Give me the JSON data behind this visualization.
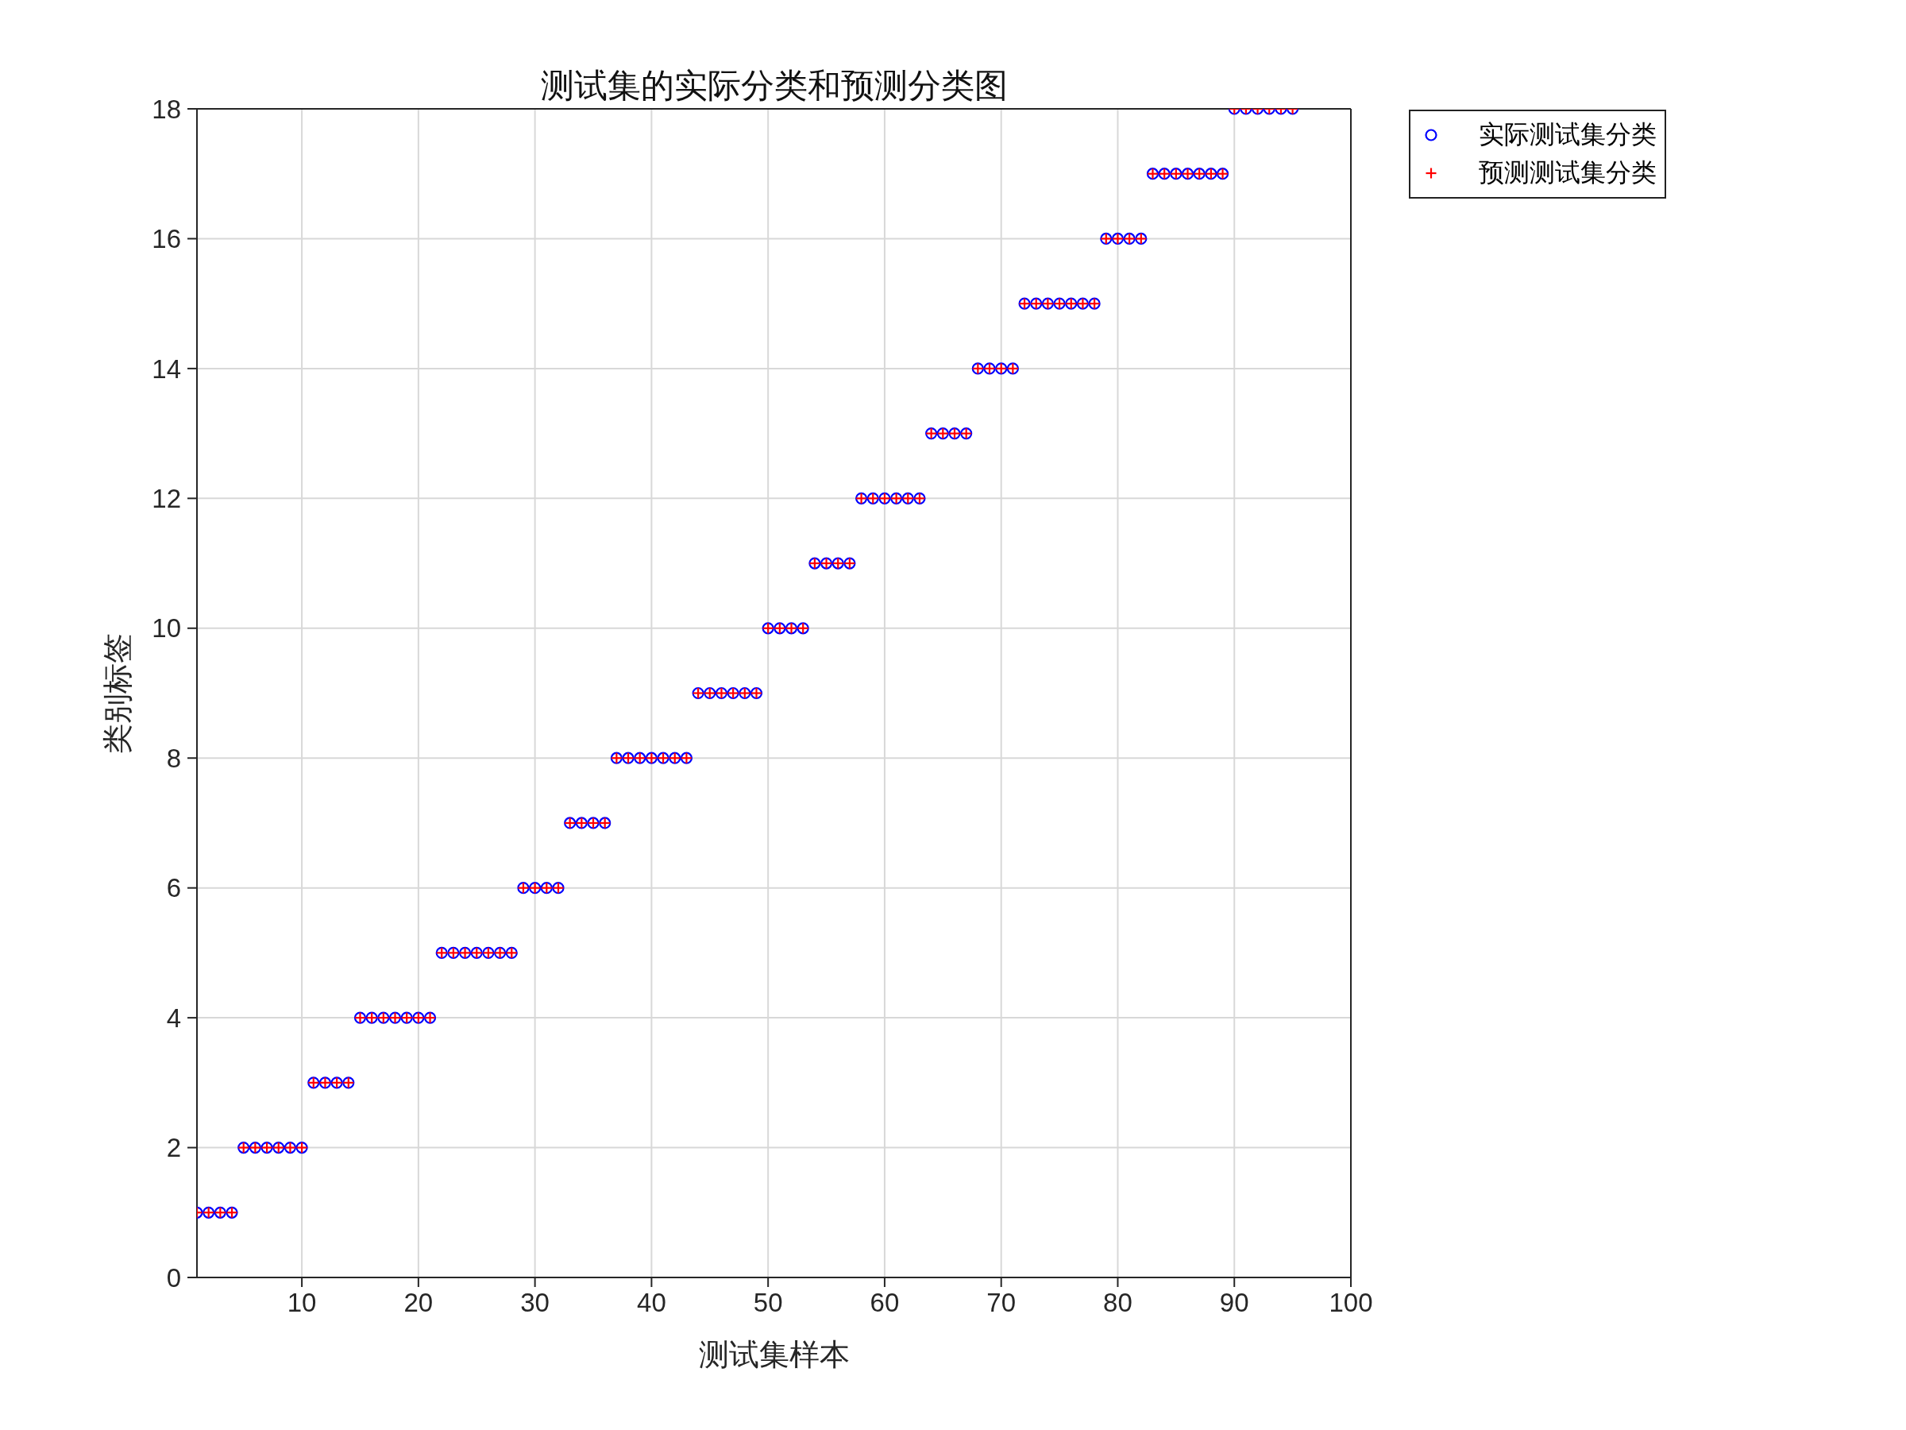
{
  "chart_data": {
    "type": "scatter",
    "title": "测试集的实际分类和预测分类图",
    "xlabel": "测试集样本",
    "ylabel": "类别标签",
    "x": [
      1,
      2,
      3,
      4,
      5,
      6,
      7,
      8,
      9,
      10,
      11,
      12,
      13,
      14,
      15,
      16,
      17,
      18,
      19,
      20,
      21,
      22,
      23,
      24,
      25,
      26,
      27,
      28,
      29,
      30,
      31,
      32,
      33,
      34,
      35,
      36,
      37,
      38,
      39,
      40,
      41,
      42,
      43,
      44,
      45,
      46,
      47,
      48,
      49,
      50,
      51,
      52,
      53,
      54,
      55,
      56,
      57,
      58,
      59,
      60,
      61,
      62,
      63,
      64,
      65,
      66,
      67,
      68,
      69,
      70,
      71,
      72,
      73,
      74,
      75,
      76,
      77,
      78,
      79,
      80,
      81,
      82,
      83,
      84,
      85,
      86,
      87,
      88,
      89,
      90,
      91,
      92,
      93,
      94,
      95
    ],
    "series": [
      {
        "name": "实际测试集分类",
        "color": "#0000ff",
        "marker": "circle",
        "values": [
          1,
          1,
          1,
          1,
          2,
          2,
          2,
          2,
          2,
          2,
          3,
          3,
          3,
          3,
          4,
          4,
          4,
          4,
          4,
          4,
          4,
          5,
          5,
          5,
          5,
          5,
          5,
          5,
          6,
          6,
          6,
          6,
          7,
          7,
          7,
          7,
          8,
          8,
          8,
          8,
          8,
          8,
          8,
          9,
          9,
          9,
          9,
          9,
          9,
          10,
          10,
          10,
          10,
          11,
          11,
          11,
          11,
          12,
          12,
          12,
          12,
          12,
          12,
          13,
          13,
          13,
          13,
          14,
          14,
          14,
          14,
          15,
          15,
          15,
          15,
          15,
          15,
          15,
          16,
          16,
          16,
          16,
          17,
          17,
          17,
          17,
          17,
          17,
          17,
          18,
          18,
          18,
          18,
          18,
          18
        ]
      },
      {
        "name": "预测测试集分类",
        "color": "#ff0000",
        "marker": "cross",
        "values": [
          1,
          1,
          1,
          1,
          2,
          2,
          2,
          2,
          2,
          2,
          3,
          3,
          3,
          3,
          4,
          4,
          4,
          4,
          4,
          4,
          4,
          5,
          5,
          5,
          5,
          5,
          5,
          5,
          6,
          6,
          6,
          6,
          7,
          7,
          7,
          7,
          8,
          8,
          8,
          8,
          8,
          8,
          8,
          9,
          9,
          9,
          9,
          9,
          9,
          10,
          10,
          10,
          10,
          11,
          11,
          11,
          11,
          12,
          12,
          12,
          12,
          12,
          12,
          13,
          13,
          13,
          13,
          14,
          14,
          14,
          14,
          15,
          15,
          15,
          15,
          15,
          15,
          15,
          16,
          16,
          16,
          16,
          17,
          17,
          17,
          17,
          17,
          17,
          17,
          18,
          18,
          18,
          18,
          18,
          18
        ]
      }
    ],
    "xlim": [
      1,
      100
    ],
    "xticks": [
      10,
      20,
      30,
      40,
      50,
      60,
      70,
      80,
      90,
      100
    ],
    "ylim": [
      0,
      18
    ],
    "yticks": [
      0,
      2,
      4,
      6,
      8,
      10,
      12,
      14,
      16,
      18
    ],
    "grid": true,
    "legend": "top right"
  }
}
